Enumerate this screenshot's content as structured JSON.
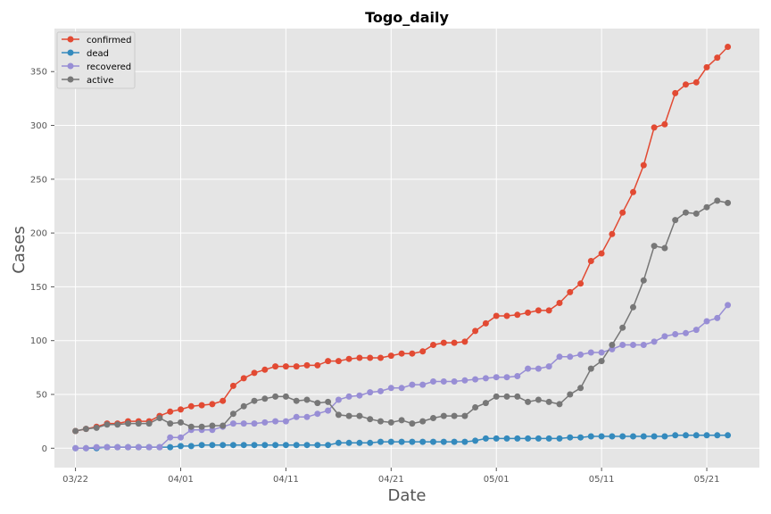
{
  "chart_data": {
    "type": "line",
    "title": "Togo_daily",
    "xlabel": "Date",
    "ylabel": "Cases",
    "x_start": "2020-03-22",
    "x_ticks": [
      "03/22",
      "04/01",
      "04/11",
      "04/21",
      "05/01",
      "05/11",
      "05/21"
    ],
    "y_ticks": [
      0,
      50,
      100,
      150,
      200,
      250,
      300,
      350
    ],
    "xlim": [
      "2020-03-20",
      "2020-05-26"
    ],
    "ylim": [
      -18,
      390
    ],
    "grid": true,
    "legend_position": "top-left",
    "series": [
      {
        "name": "confirmed",
        "color": "#E24A33",
        "values": [
          16,
          18,
          20,
          23,
          23,
          25,
          25,
          25,
          30,
          34,
          36,
          39,
          40,
          41,
          44,
          58,
          65,
          70,
          73,
          76,
          76,
          76,
          77,
          77,
          81,
          81,
          83,
          84,
          84,
          84,
          86,
          88,
          88,
          90,
          96,
          98,
          98,
          99,
          109,
          116,
          123,
          123,
          124,
          126,
          128,
          128,
          135,
          145,
          153,
          174,
          181,
          199,
          219,
          238,
          263,
          298,
          301,
          330,
          338,
          340,
          354,
          363,
          373
        ]
      },
      {
        "name": "dead",
        "color": "#348ABD",
        "values": [
          0,
          0,
          0,
          1,
          1,
          1,
          1,
          1,
          1,
          1,
          2,
          2,
          3,
          3,
          3,
          3,
          3,
          3,
          3,
          3,
          3,
          3,
          3,
          3,
          3,
          5,
          5,
          5,
          5,
          6,
          6,
          6,
          6,
          6,
          6,
          6,
          6,
          6,
          7,
          9,
          9,
          9,
          9,
          9,
          9,
          9,
          9,
          10,
          10,
          11,
          11,
          11,
          11,
          11,
          11,
          11,
          11,
          12,
          12,
          12,
          12,
          12,
          12
        ]
      },
      {
        "name": "recovered",
        "color": "#988ED5",
        "values": [
          0,
          0,
          1,
          1,
          1,
          1,
          1,
          1,
          1,
          10,
          10,
          17,
          17,
          17,
          20,
          23,
          23,
          23,
          24,
          25,
          25,
          29,
          29,
          32,
          35,
          45,
          48,
          49,
          52,
          53,
          56,
          56,
          59,
          59,
          62,
          62,
          62,
          63,
          64,
          65,
          66,
          66,
          67,
          74,
          74,
          76,
          85,
          85,
          87,
          89,
          89,
          92,
          96,
          96,
          96,
          99,
          104,
          106,
          107,
          110,
          118,
          121,
          133
        ]
      },
      {
        "name": "active",
        "color": "#777777",
        "values": [
          16,
          18,
          19,
          22,
          22,
          23,
          23,
          23,
          28,
          23,
          24,
          20,
          20,
          21,
          21,
          32,
          39,
          44,
          46,
          48,
          48,
          44,
          45,
          42,
          43,
          31,
          30,
          30,
          27,
          25,
          24,
          26,
          23,
          25,
          28,
          30,
          30,
          30,
          38,
          42,
          48,
          48,
          48,
          43,
          45,
          43,
          41,
          50,
          56,
          74,
          81,
          96,
          112,
          131,
          156,
          188,
          186,
          212,
          219,
          218,
          224,
          230,
          228
        ]
      }
    ]
  }
}
